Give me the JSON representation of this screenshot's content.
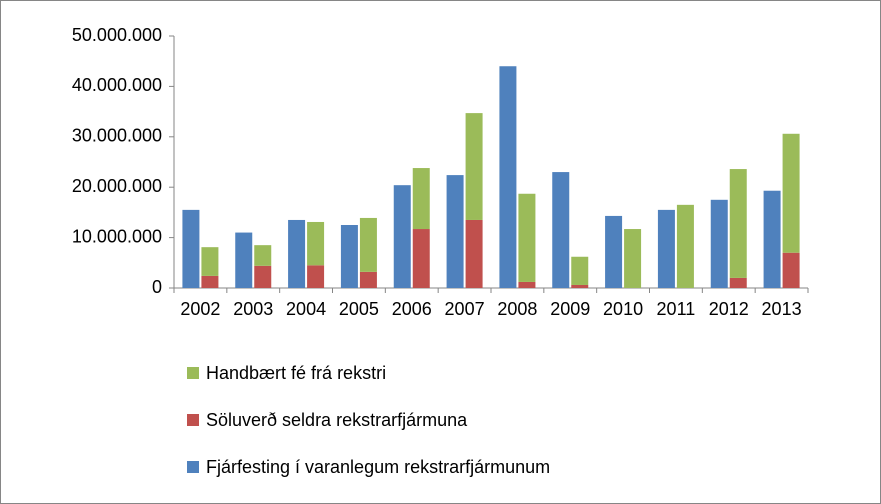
{
  "chart_data": {
    "type": "bar",
    "categories": [
      "2002",
      "2003",
      "2004",
      "2005",
      "2006",
      "2007",
      "2008",
      "2009",
      "2010",
      "2011",
      "2012",
      "2013"
    ],
    "series": [
      {
        "name": "Fjárfesting í varanlegum rekstrarfjármunum",
        "color": "#4f81bd",
        "stack": "a",
        "values": [
          15500000,
          11000000,
          13500000,
          12500000,
          20400000,
          22400000,
          44000000,
          23000000,
          14300000,
          15500000,
          17500000,
          19300000
        ]
      },
      {
        "name": "Söluverð seldra rekstrarfjármuna",
        "color": "#c0504d",
        "stack": "b",
        "values": [
          2400000,
          4400000,
          4500000,
          3200000,
          11700000,
          13500000,
          1200000,
          600000,
          0,
          0,
          2000000,
          7000000
        ]
      },
      {
        "name": "Handbært fé frá rekstri",
        "color": "#9bbb59",
        "stack": "b",
        "values": [
          5700000,
          4100000,
          8600000,
          10700000,
          12100000,
          21200000,
          17500000,
          5600000,
          11700000,
          16500000,
          21600000,
          23600000
        ]
      }
    ],
    "ylim": [
      0,
      50000000
    ],
    "yticks": [
      0,
      {
        "value": 10000000,
        "label": "10.000.000"
      },
      {
        "value": 20000000,
        "label": "20.000.000"
      },
      {
        "value": 30000000,
        "label": "30.000.000"
      },
      {
        "value": 40000000,
        "label": "40.000.000"
      },
      {
        "value": 50000000,
        "label": "50.000.000"
      }
    ],
    "grid": false,
    "legend": "bottom"
  }
}
